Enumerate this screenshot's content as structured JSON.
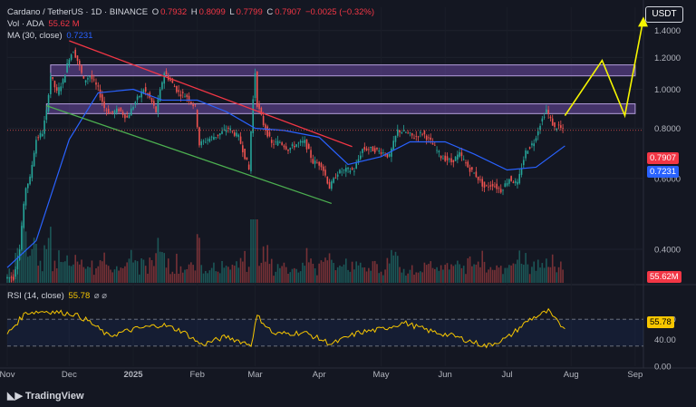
{
  "header": {
    "symbol": "Cardano / TetherUS · 1D · BINANCE",
    "o_label": "O",
    "o_value": "0.7932",
    "h_label": "H",
    "h_value": "0.8099",
    "l_label": "L",
    "l_value": "0.7799",
    "c_label": "C",
    "c_value": "0.7907",
    "change": "−0.0025 (−0.32%)",
    "vol_label": "Vol · ADA",
    "vol_value": "55.62 M",
    "ma_label": "MA (30, close)",
    "ma_value": "0.7231",
    "rsi_label": "RSI (14, close)",
    "rsi_value": "55.78",
    "rsi_extra": "⌀ ⌀"
  },
  "currency": "USDT",
  "brand": "TradingView",
  "price_tags": {
    "close": "0.7907",
    "ma": "0.7231",
    "volume": "55.62M",
    "rsi": "55.78"
  },
  "colors": {
    "up": "#26a69a",
    "down": "#ef5350",
    "ma": "#2962ff",
    "rsi": "#f7c600",
    "zone": "#7e57c2",
    "resistance": "#f23645",
    "support": "#4caf50",
    "projection": "#f5f500"
  },
  "chart_data": {
    "type": "candlestick",
    "price_axis": {
      "scale": "log",
      "ticks": [
        "1.4000",
        "1.2000",
        "1.0000",
        "0.8000",
        "0.6000",
        "0.4000"
      ],
      "range": [
        0.33,
        1.6
      ]
    },
    "time_axis": {
      "labels": [
        "Nov",
        "Dec",
        "2025",
        "Feb",
        "Mar",
        "Apr",
        "May",
        "Jun",
        "Jul",
        "Aug",
        "Sep"
      ],
      "start": "2024-11-01",
      "end": "2025-09-05"
    },
    "rsi_axis": {
      "ticks": [
        "70.00",
        "40.00",
        "0.00"
      ],
      "upper_band": 70,
      "lower_band": 30,
      "range": [
        0,
        100
      ]
    },
    "closes": [
      [
        "2024-11-01",
        0.34
      ],
      [
        "2024-11-05",
        0.34
      ],
      [
        "2024-11-08",
        0.4
      ],
      [
        "2024-11-11",
        0.57
      ],
      [
        "2024-11-13",
        0.6
      ],
      [
        "2024-11-16",
        0.75
      ],
      [
        "2024-11-19",
        0.78
      ],
      [
        "2024-11-21",
        0.88
      ],
      [
        "2024-11-23",
        1.08
      ],
      [
        "2024-11-26",
        0.98
      ],
      [
        "2024-11-29",
        1.05
      ],
      [
        "2024-12-02",
        1.2
      ],
      [
        "2024-12-04",
        1.25
      ],
      [
        "2024-12-06",
        1.18
      ],
      [
        "2024-12-09",
        1.05
      ],
      [
        "2024-12-12",
        1.08
      ],
      [
        "2024-12-16",
        1.0
      ],
      [
        "2024-12-19",
        0.9
      ],
      [
        "2024-12-22",
        0.87
      ],
      [
        "2024-12-26",
        0.89
      ],
      [
        "2024-12-30",
        0.85
      ],
      [
        "2025-01-03",
        0.93
      ],
      [
        "2025-01-07",
        1.0
      ],
      [
        "2025-01-10",
        0.95
      ],
      [
        "2025-01-13",
        0.88
      ],
      [
        "2025-01-17",
        1.1
      ],
      [
        "2025-01-20",
        1.05
      ],
      [
        "2025-01-24",
        0.98
      ],
      [
        "2025-01-28",
        0.96
      ],
      [
        "2025-02-01",
        0.9
      ],
      [
        "2025-02-03",
        0.73
      ],
      [
        "2025-02-07",
        0.75
      ],
      [
        "2025-02-12",
        0.77
      ],
      [
        "2025-02-17",
        0.8
      ],
      [
        "2025-02-22",
        0.76
      ],
      [
        "2025-02-27",
        0.63
      ],
      [
        "2025-03-02",
        1.1
      ],
      [
        "2025-03-03",
        0.92
      ],
      [
        "2025-03-06",
        0.82
      ],
      [
        "2025-03-10",
        0.73
      ],
      [
        "2025-03-14",
        0.74
      ],
      [
        "2025-03-18",
        0.71
      ],
      [
        "2025-03-22",
        0.73
      ],
      [
        "2025-03-26",
        0.74
      ],
      [
        "2025-03-30",
        0.66
      ],
      [
        "2025-04-03",
        0.65
      ],
      [
        "2025-04-07",
        0.57
      ],
      [
        "2025-04-11",
        0.62
      ],
      [
        "2025-04-15",
        0.63
      ],
      [
        "2025-04-19",
        0.63
      ],
      [
        "2025-04-23",
        0.71
      ],
      [
        "2025-04-27",
        0.71
      ],
      [
        "2025-05-02",
        0.7
      ],
      [
        "2025-05-06",
        0.68
      ],
      [
        "2025-05-10",
        0.79
      ],
      [
        "2025-05-14",
        0.78
      ],
      [
        "2025-05-18",
        0.76
      ],
      [
        "2025-05-22",
        0.78
      ],
      [
        "2025-05-26",
        0.74
      ],
      [
        "2025-05-31",
        0.68
      ],
      [
        "2025-06-05",
        0.66
      ],
      [
        "2025-06-09",
        0.69
      ],
      [
        "2025-06-13",
        0.64
      ],
      [
        "2025-06-17",
        0.61
      ],
      [
        "2025-06-21",
        0.57
      ],
      [
        "2025-06-25",
        0.58
      ],
      [
        "2025-06-29",
        0.56
      ],
      [
        "2025-07-03",
        0.6
      ],
      [
        "2025-07-07",
        0.58
      ],
      [
        "2025-07-11",
        0.7
      ],
      [
        "2025-07-15",
        0.74
      ],
      [
        "2025-07-18",
        0.82
      ],
      [
        "2025-07-21",
        0.89
      ],
      [
        "2025-07-23",
        0.84
      ],
      [
        "2025-07-25",
        0.8
      ],
      [
        "2025-07-27",
        0.81
      ],
      [
        "2025-07-29",
        0.7907
      ]
    ],
    "ma30": [
      [
        "2024-11-01",
        0.36
      ],
      [
        "2024-11-15",
        0.42
      ],
      [
        "2024-12-01",
        0.75
      ],
      [
        "2024-12-15",
        0.98
      ],
      [
        "2025-01-01",
        1.0
      ],
      [
        "2025-01-15",
        0.94
      ],
      [
        "2025-02-01",
        0.94
      ],
      [
        "2025-02-15",
        0.88
      ],
      [
        "2025-03-01",
        0.8
      ],
      [
        "2025-03-15",
        0.79
      ],
      [
        "2025-04-01",
        0.76
      ],
      [
        "2025-04-15",
        0.65
      ],
      [
        "2025-05-01",
        0.68
      ],
      [
        "2025-05-15",
        0.74
      ],
      [
        "2025-06-01",
        0.74
      ],
      [
        "2025-06-15",
        0.69
      ],
      [
        "2025-07-01",
        0.63
      ],
      [
        "2025-07-15",
        0.64
      ],
      [
        "2025-07-29",
        0.7231
      ]
    ],
    "rsi": [
      [
        "2024-11-01",
        48
      ],
      [
        "2024-11-10",
        80
      ],
      [
        "2024-11-20",
        82
      ],
      [
        "2024-12-03",
        78
      ],
      [
        "2024-12-10",
        68
      ],
      [
        "2024-12-20",
        45
      ],
      [
        "2025-01-01",
        55
      ],
      [
        "2025-01-15",
        62
      ],
      [
        "2025-01-25",
        52
      ],
      [
        "2025-02-03",
        32
      ],
      [
        "2025-02-15",
        44
      ],
      [
        "2025-02-27",
        32
      ],
      [
        "2025-03-02",
        75
      ],
      [
        "2025-03-10",
        48
      ],
      [
        "2025-03-25",
        50
      ],
      [
        "2025-04-07",
        33
      ],
      [
        "2025-04-20",
        50
      ],
      [
        "2025-05-01",
        55
      ],
      [
        "2025-05-12",
        65
      ],
      [
        "2025-05-25",
        52
      ],
      [
        "2025-06-05",
        45
      ],
      [
        "2025-06-21",
        30
      ],
      [
        "2025-07-01",
        42
      ],
      [
        "2025-07-12",
        70
      ],
      [
        "2025-07-21",
        82
      ],
      [
        "2025-07-24",
        70
      ],
      [
        "2025-07-29",
        55.78
      ]
    ],
    "annotations": {
      "zones": [
        {
          "low": 1.08,
          "high": 1.15,
          "from": "2024-11-22",
          "to": "2025-09-01"
        },
        {
          "low": 0.87,
          "high": 0.92,
          "from": "2024-11-20",
          "to": "2025-09-01"
        }
      ],
      "resistance_line": [
        [
          "2024-12-01",
          1.32
        ],
        [
          "2025-04-17",
          0.72
        ]
      ],
      "support_line": [
        [
          "2024-11-20",
          0.91
        ],
        [
          "2025-04-07",
          0.52
        ]
      ],
      "projection": [
        [
          "2025-07-29",
          0.86
        ],
        [
          "2025-08-16",
          1.18
        ],
        [
          "2025-08-27",
          0.86
        ],
        [
          "2025-09-05",
          1.5
        ]
      ]
    }
  }
}
